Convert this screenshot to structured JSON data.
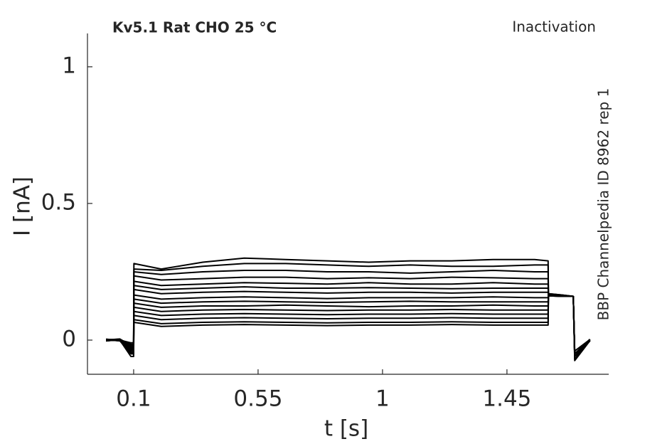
{
  "chart_data": {
    "type": "line",
    "title": "Kv5.1  Rat  CHO  25 °C",
    "subtitle": "Inactivation",
    "annotation": "BBP Channelpedia ID 8962 rep 1",
    "xlabel": "t [s]",
    "ylabel": "I [nA]",
    "xlim": [
      -0.067,
      1.818
    ],
    "ylim": [
      -0.125,
      1.122
    ],
    "xticks": [
      0.1,
      0.55,
      1,
      1.45
    ],
    "yticks": [
      0,
      0.5,
      1
    ],
    "x": [
      0,
      0.05,
      0.09,
      0.1,
      0.101,
      0.2,
      0.35,
      0.5,
      0.65,
      0.8,
      0.95,
      1.1,
      1.25,
      1.4,
      1.55,
      1.599,
      1.6,
      1.65,
      1.69,
      1.695,
      1.75
    ],
    "series": [
      {
        "color": "#000000",
        "values": [
          0,
          0.003,
          -0.02,
          -0.02,
          0.28,
          0.26,
          0.285,
          0.3,
          0.295,
          0.29,
          0.285,
          0.29,
          0.29,
          0.295,
          0.295,
          0.29,
          0.17,
          0.165,
          0.16,
          -0.05,
          0.0
        ]
      },
      {
        "color": "#000000",
        "values": [
          0.002,
          0,
          -0.01,
          -0.01,
          0.26,
          0.255,
          0.27,
          0.28,
          0.28,
          0.275,
          0.27,
          0.275,
          0.27,
          0.27,
          0.275,
          0.275,
          0.17,
          0.165,
          0.16,
          -0.04,
          0.002
        ]
      },
      {
        "color": "#000000",
        "values": [
          -0.002,
          0.002,
          -0.015,
          -0.015,
          0.25,
          0.24,
          0.25,
          0.255,
          0.255,
          0.25,
          0.25,
          0.245,
          0.25,
          0.255,
          0.25,
          0.25,
          0.168,
          0.164,
          0.16,
          -0.06,
          -0.002
        ]
      },
      {
        "color": "#000000",
        "values": [
          0,
          -0.002,
          -0.02,
          -0.02,
          0.235,
          0.22,
          0.225,
          0.23,
          0.23,
          0.225,
          0.228,
          0.225,
          0.23,
          0.228,
          0.225,
          0.225,
          0.167,
          0.163,
          0.16,
          -0.05,
          0
        ]
      },
      {
        "color": "#000000",
        "values": [
          0.003,
          0,
          -0.025,
          -0.025,
          0.215,
          0.2,
          0.205,
          0.21,
          0.208,
          0.205,
          0.21,
          0.205,
          0.205,
          0.21,
          0.205,
          0.205,
          0.166,
          0.163,
          0.16,
          -0.05,
          0.003
        ]
      },
      {
        "color": "#000000",
        "values": [
          -0.003,
          0.002,
          -0.03,
          -0.03,
          0.2,
          0.185,
          0.19,
          0.195,
          0.19,
          0.19,
          0.192,
          0.19,
          0.188,
          0.19,
          0.19,
          0.19,
          0.165,
          0.162,
          0.16,
          -0.06,
          -0.003
        ]
      },
      {
        "color": "#000000",
        "values": [
          0,
          0.004,
          -0.02,
          -0.02,
          0.185,
          0.17,
          0.175,
          0.178,
          0.175,
          0.172,
          0.175,
          0.175,
          0.172,
          0.175,
          0.175,
          0.175,
          0.165,
          0.162,
          0.16,
          -0.05,
          0
        ]
      },
      {
        "color": "#000000",
        "values": [
          0.002,
          -0.003,
          -0.03,
          -0.03,
          0.165,
          0.15,
          0.155,
          0.158,
          0.155,
          0.152,
          0.155,
          0.155,
          0.155,
          0.158,
          0.155,
          0.155,
          0.165,
          0.162,
          0.16,
          -0.05,
          0.002
        ]
      },
      {
        "color": "#000000",
        "values": [
          -0.002,
          0,
          -0.035,
          -0.035,
          0.15,
          0.135,
          0.14,
          0.142,
          0.14,
          0.138,
          0.14,
          0.142,
          0.14,
          0.14,
          0.14,
          0.14,
          0.164,
          0.162,
          0.16,
          -0.06,
          -0.002
        ]
      },
      {
        "color": "#000000",
        "values": [
          0,
          0.003,
          -0.04,
          -0.04,
          0.135,
          0.12,
          0.125,
          0.125,
          0.128,
          0.125,
          0.122,
          0.125,
          0.125,
          0.128,
          0.125,
          0.125,
          0.164,
          0.161,
          0.16,
          -0.05,
          0
        ]
      },
      {
        "color": "#000000",
        "values": [
          0.003,
          0,
          -0.04,
          -0.04,
          0.12,
          0.105,
          0.11,
          0.112,
          0.11,
          0.108,
          0.11,
          0.11,
          0.112,
          0.11,
          0.11,
          0.11,
          0.163,
          0.161,
          0.16,
          -0.06,
          0.003
        ]
      },
      {
        "color": "#000000",
        "values": [
          -0.003,
          0.002,
          -0.045,
          -0.045,
          0.105,
          0.09,
          0.095,
          0.097,
          0.095,
          0.093,
          0.095,
          0.095,
          0.097,
          0.095,
          0.095,
          0.095,
          0.163,
          0.161,
          0.16,
          -0.05,
          -0.003
        ]
      },
      {
        "color": "#000000",
        "values": [
          0,
          -0.002,
          -0.05,
          -0.05,
          0.09,
          0.075,
          0.08,
          0.082,
          0.08,
          0.078,
          0.08,
          0.08,
          0.082,
          0.08,
          0.08,
          0.08,
          0.162,
          0.16,
          0.16,
          -0.06,
          0
        ]
      },
      {
        "color": "#000000",
        "values": [
          0.002,
          0.003,
          -0.05,
          -0.05,
          0.075,
          0.06,
          0.065,
          0.067,
          0.065,
          0.063,
          0.065,
          0.065,
          0.067,
          0.065,
          0.065,
          0.065,
          0.162,
          0.16,
          0.16,
          -0.07,
          0.002
        ]
      },
      {
        "color": "#000000",
        "values": [
          -0.002,
          0,
          -0.06,
          -0.06,
          0.065,
          0.05,
          0.055,
          0.057,
          0.055,
          0.053,
          0.055,
          0.055,
          0.057,
          0.055,
          0.055,
          0.055,
          0.162,
          0.16,
          0.16,
          -0.075,
          -0.002
        ]
      }
    ]
  }
}
